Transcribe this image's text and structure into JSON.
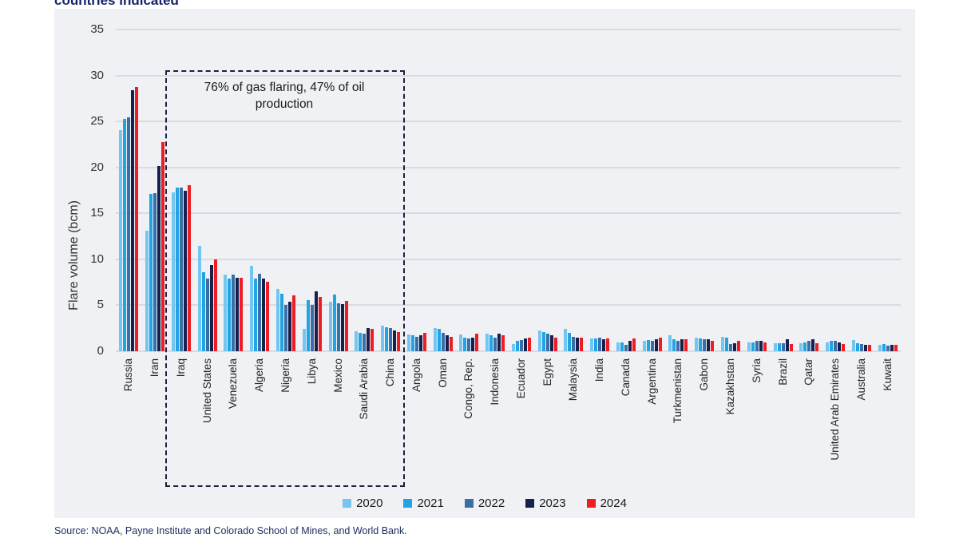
{
  "page": {
    "title": "countries indicated",
    "source": "Source: NOAA, Payne Institute and Colorado School of Mines, and World Bank."
  },
  "colors": {
    "panel_background": "#f0f1f5",
    "gridline": "#d9dbe0",
    "title_navy": "#16246b",
    "callout_border": "#1a2340"
  },
  "chart_data": {
    "type": "bar",
    "title": "countries indicated",
    "ylabel": "Flare volume (bcm)",
    "ylim": [
      0,
      35
    ],
    "yticks": [
      0,
      5,
      10,
      15,
      20,
      25,
      30,
      35
    ],
    "grid": true,
    "legend_position": "bottom",
    "annotation": {
      "text": "76% of gas flaring, 47% of oil production",
      "note": "dashed box around first nine countries"
    },
    "categories": [
      "Russia",
      "Iran",
      "Iraq",
      "United States",
      "Venezuela",
      "Algeria",
      "Nigeria",
      "Libya",
      "Mexico",
      "Saudi Arabia",
      "China",
      "Angola",
      "Oman",
      "Congo, Rep.",
      "Indonesia",
      "Ecuador",
      "Egypt",
      "Malaysia",
      "India",
      "Canada",
      "Argentina",
      "Turkmenistan",
      "Gabon",
      "Kazakhstan",
      "Syria",
      "Brazil",
      "Qatar",
      "United Arab Emirates",
      "Australia",
      "Kuwait"
    ],
    "series": [
      {
        "name": "2020",
        "color": "#74c5f0",
        "values": [
          24.1,
          13.1,
          17.3,
          11.5,
          8.3,
          9.3,
          6.8,
          2.4,
          5.4,
          2.2,
          2.8,
          1.8,
          2.5,
          1.8,
          1.9,
          0.8,
          2.3,
          2.4,
          1.4,
          1.0,
          1.1,
          1.7,
          1.5,
          1.6,
          1.0,
          0.9,
          0.9,
          1.0,
          1.2,
          0.7
        ]
      },
      {
        "name": "2021",
        "color": "#22a3e3",
        "values": [
          25.3,
          17.1,
          17.8,
          8.6,
          7.9,
          7.9,
          6.3,
          5.6,
          6.2,
          2.0,
          2.6,
          1.7,
          2.4,
          1.5,
          1.7,
          1.1,
          2.1,
          2.0,
          1.4,
          1.0,
          1.2,
          1.3,
          1.4,
          1.5,
          1.0,
          0.9,
          1.0,
          1.1,
          0.9,
          0.8
        ]
      },
      {
        "name": "2022",
        "color": "#3a6fa6",
        "values": [
          25.5,
          17.2,
          17.8,
          7.9,
          8.3,
          8.4,
          5.0,
          5.0,
          5.2,
          1.9,
          2.5,
          1.6,
          2.0,
          1.4,
          1.5,
          1.2,
          1.9,
          1.6,
          1.5,
          0.7,
          1.1,
          1.1,
          1.3,
          0.8,
          1.1,
          0.9,
          1.1,
          1.1,
          0.8,
          0.6
        ]
      },
      {
        "name": "2023",
        "color": "#17204d",
        "values": [
          28.4,
          20.2,
          17.5,
          9.4,
          8.0,
          7.9,
          5.4,
          6.5,
          5.1,
          2.5,
          2.3,
          1.7,
          1.7,
          1.5,
          1.9,
          1.4,
          1.7,
          1.5,
          1.3,
          1.1,
          1.3,
          1.3,
          1.3,
          0.9,
          1.1,
          1.3,
          1.3,
          1.0,
          0.7,
          0.7
        ]
      },
      {
        "name": "2024",
        "color": "#ee1c23",
        "values": [
          28.8,
          22.8,
          18.1,
          10.0,
          8.0,
          7.6,
          6.1,
          5.9,
          5.5,
          2.4,
          2.1,
          2.0,
          1.6,
          1.9,
          1.7,
          1.5,
          1.5,
          1.5,
          1.4,
          1.4,
          1.5,
          1.3,
          1.1,
          1.1,
          1.0,
          0.8,
          0.9,
          0.8,
          0.7,
          0.7
        ]
      }
    ]
  }
}
